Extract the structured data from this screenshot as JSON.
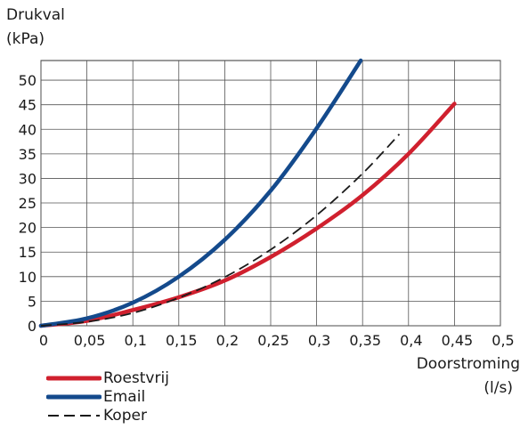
{
  "chart_data": {
    "type": "line",
    "ylabel_lines": [
      "Drukval",
      "(kPa)"
    ],
    "xlabel_lines": [
      "Doorstroming",
      "(l/s)"
    ],
    "x_ticks": [
      "0",
      "0,05",
      "0,1",
      "0,15",
      "0,2",
      "0,25",
      "0,3",
      "0,35",
      "0,4",
      "0,45",
      "0,5"
    ],
    "y_ticks": [
      "0",
      "5",
      "10",
      "15",
      "20",
      "25",
      "30",
      "35",
      "40",
      "45",
      "50"
    ],
    "xlim": [
      0,
      0.5
    ],
    "ylim": [
      0,
      54
    ],
    "grid": true,
    "legend_position": "bottom-left",
    "series": [
      {
        "name": "Roestvrij",
        "color": "#d0202e",
        "style": "solid",
        "x": [
          0,
          0.05,
          0.1,
          0.15,
          0.2,
          0.25,
          0.3,
          0.35,
          0.4,
          0.45
        ],
        "y": [
          0,
          1.0,
          3.2,
          5.8,
          9.2,
          14.0,
          19.8,
          26.6,
          35.0,
          45.2
        ]
      },
      {
        "name": "Email",
        "color": "#144a8c",
        "style": "solid",
        "x": [
          0,
          0.05,
          0.1,
          0.15,
          0.2,
          0.25,
          0.3,
          0.348
        ],
        "y": [
          0,
          1.5,
          4.7,
          10.0,
          17.5,
          27.5,
          40.2,
          54.0
        ]
      },
      {
        "name": "Koper",
        "color": "#1a1a1a",
        "style": "dashed",
        "x": [
          0,
          0.05,
          0.1,
          0.15,
          0.2,
          0.25,
          0.3,
          0.35,
          0.39
        ],
        "y": [
          0,
          0.8,
          2.6,
          5.7,
          9.9,
          15.5,
          22.5,
          31.0,
          39.0
        ]
      }
    ]
  }
}
